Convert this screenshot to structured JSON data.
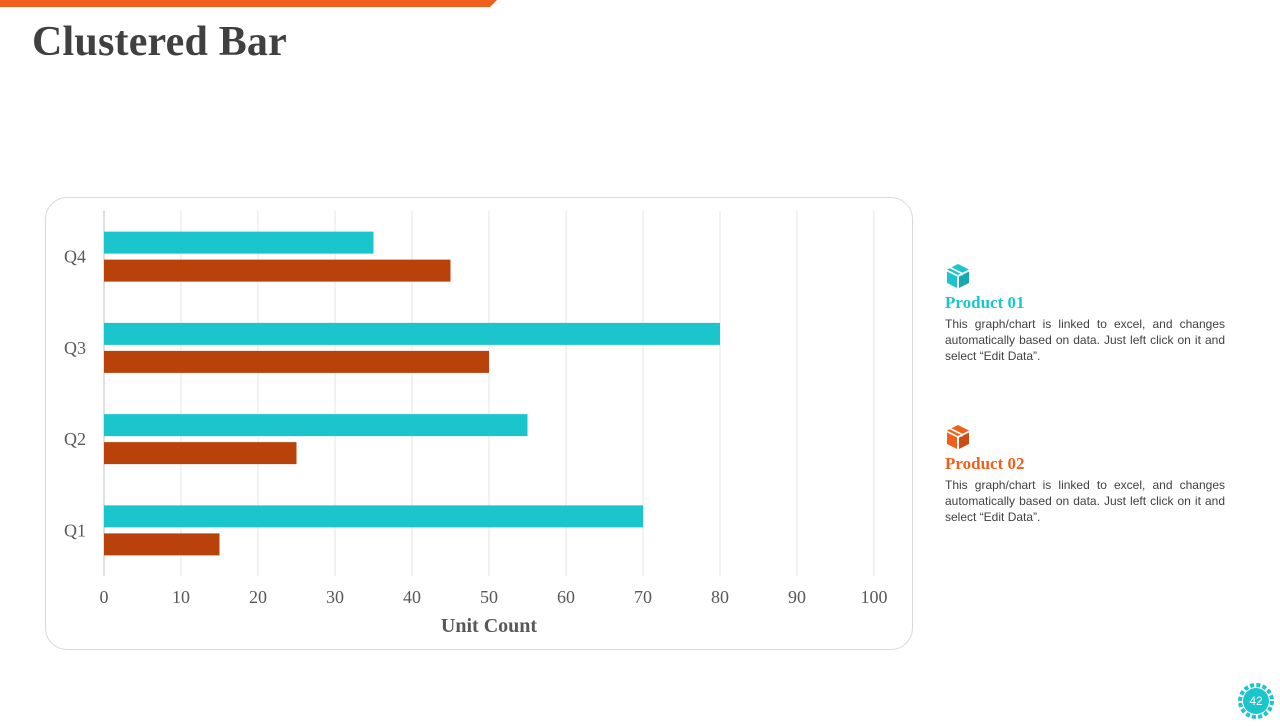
{
  "slide": {
    "title": "Clustered Bar",
    "page_number": "42",
    "accent_color": "#f0601c"
  },
  "legend": [
    {
      "title": "Product 01",
      "color": "#1bc5cc",
      "icon": "box-icon",
      "description": "This graph/chart is linked to excel, and changes automatically based on data. Just left click on it and select “Edit Data”."
    },
    {
      "title": "Product 02",
      "color": "#f0601c",
      "icon": "box-icon",
      "description": "This graph/chart is linked to excel, and changes automatically based on data. Just left click on it and select “Edit Data”."
    }
  ],
  "chart_data": {
    "type": "bar",
    "orientation": "horizontal",
    "categories": [
      "Q1",
      "Q2",
      "Q3",
      "Q4"
    ],
    "series": [
      {
        "name": "Product 01",
        "color": "#1bc5cc",
        "values": [
          70,
          55,
          80,
          35
        ]
      },
      {
        "name": "Product 02",
        "color": "#b8420a",
        "values": [
          15,
          25,
          50,
          45
        ]
      }
    ],
    "xlabel": "Unit Count",
    "ylabel": "",
    "xlim": [
      0,
      100
    ],
    "xticks": [
      0,
      10,
      20,
      30,
      40,
      50,
      60,
      70,
      80,
      90,
      100
    ],
    "grid": true
  }
}
